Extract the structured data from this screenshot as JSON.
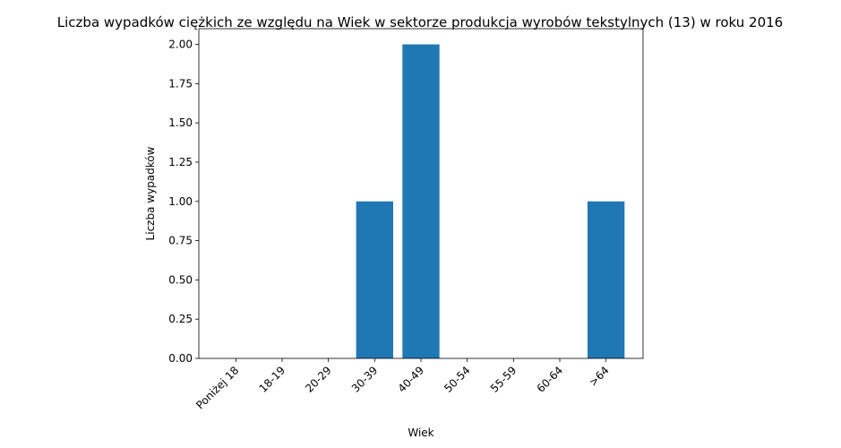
{
  "chart_data": {
    "type": "bar",
    "title": "Liczba wypadków ciężkich ze względu na Wiek w sektorze produkcja wyrobów tekstylnych  (13)   w roku 2016",
    "xlabel": "Wiek",
    "ylabel": "Liczba wypadków",
    "categories": [
      "Poniżej 18",
      "18-19",
      "20-29",
      "30-39",
      "40-49",
      "50-54",
      "55-59",
      "60-64",
      ">64"
    ],
    "values": [
      0,
      0,
      0,
      1,
      2,
      0,
      0,
      0,
      1
    ],
    "ylim": [
      0,
      2.1
    ],
    "yticks": [
      "0.00",
      "0.25",
      "0.50",
      "0.75",
      "1.00",
      "1.25",
      "1.50",
      "1.75",
      "2.00"
    ],
    "bar_color": "#1f77b4",
    "grid": false
  }
}
